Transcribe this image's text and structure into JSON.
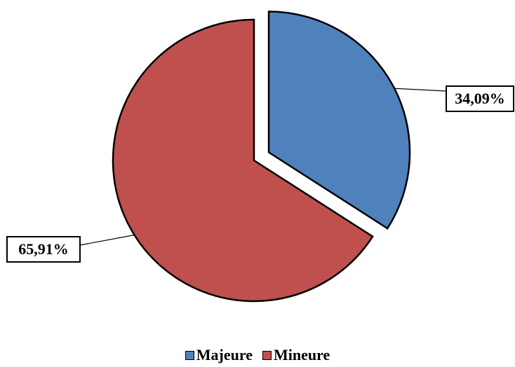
{
  "chart_data": {
    "type": "pie",
    "slices": [
      {
        "label": "Majeure",
        "value": 34.09,
        "display": "34,09%",
        "color": "#4F81BD",
        "exploded": true
      },
      {
        "label": "Mineure",
        "value": 65.91,
        "display": "65,91%",
        "color": "#C0504D",
        "exploded": false
      }
    ],
    "legend_position": "bottom",
    "start_angle": "12 o'clock, clockwise"
  },
  "legend": {
    "items": [
      {
        "label": "Majeure",
        "color": "#4F81BD"
      },
      {
        "label": "Mineure",
        "color": "#C0504D"
      }
    ]
  }
}
